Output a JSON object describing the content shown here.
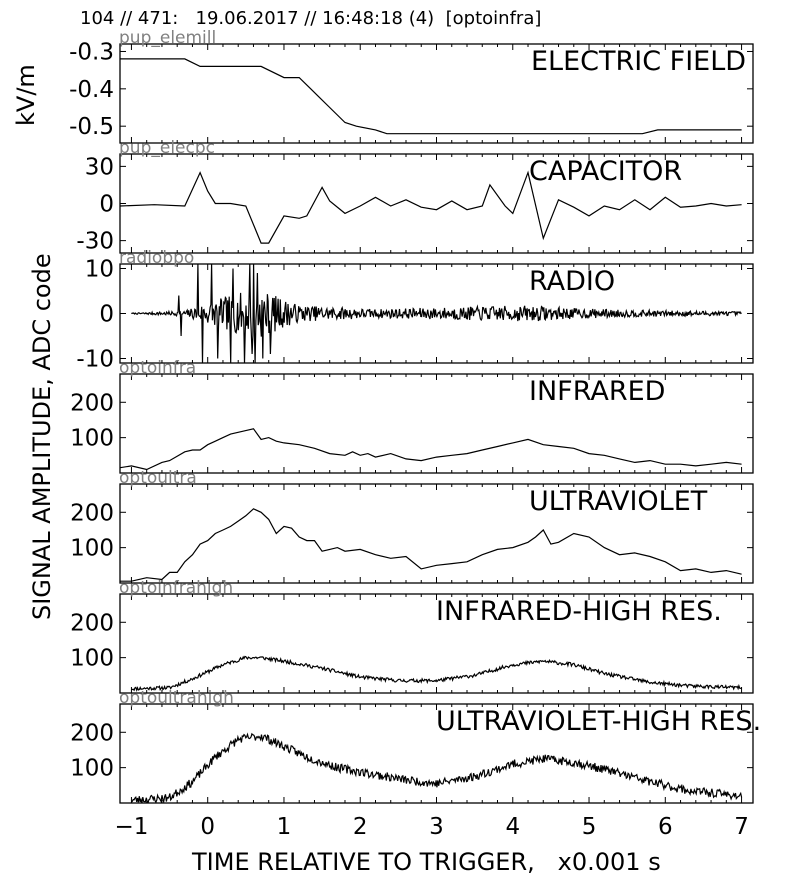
{
  "header": "104 // 471:   19.06.2017 // 16:48:18 (4)  [optoinfra]",
  "ylabel_top": "kV/m",
  "ylabel_main": "SIGNAL AMPLITUDE,  ADC code",
  "xlabel": "TIME RELATIVE TO TRIGGER,   x0.001 s",
  "xticks": [
    "−1",
    "0",
    "1",
    "2",
    "3",
    "4",
    "5",
    "6",
    "7"
  ],
  "xlim": [
    -1.15,
    7.15
  ],
  "chart_data": [
    {
      "type": "line",
      "channel": "pup_elemill",
      "title": "ELECTRIC FIELD",
      "ylim": [
        -0.545,
        -0.28
      ],
      "yticks": [
        -0.3,
        -0.4,
        -0.5
      ],
      "ytick_labels": [
        "-0.3",
        "-0.4",
        "-0.5"
      ],
      "x": [
        -1.15,
        -0.3,
        -0.1,
        0.5,
        0.7,
        1.0,
        1.1,
        1.2,
        1.35,
        1.45,
        1.6,
        1.8,
        1.95,
        2.2,
        2.35,
        5.7,
        5.9,
        7.0
      ],
      "y": [
        -0.32,
        -0.32,
        -0.34,
        -0.34,
        -0.34,
        -0.37,
        -0.37,
        -0.37,
        -0.4,
        -0.42,
        -0.45,
        -0.49,
        -0.5,
        -0.51,
        -0.52,
        -0.52,
        -0.51,
        -0.51
      ]
    },
    {
      "type": "line",
      "channel": "pup_elecpc",
      "title": "CAPACITOR",
      "ylim": [
        -40,
        40
      ],
      "yticks": [
        30,
        0,
        -30
      ],
      "ytick_labels": [
        "30",
        "0",
        "-30"
      ],
      "x": [
        -1.15,
        -0.7,
        -0.3,
        -0.1,
        0.0,
        0.1,
        0.3,
        0.5,
        0.7,
        0.8,
        1.0,
        1.2,
        1.3,
        1.5,
        1.6,
        1.8,
        2.0,
        2.2,
        2.4,
        2.6,
        2.8,
        3.0,
        3.2,
        3.4,
        3.6,
        3.7,
        3.9,
        4.0,
        4.2,
        4.4,
        4.6,
        4.8,
        5.0,
        5.2,
        5.4,
        5.6,
        5.8,
        6.0,
        6.2,
        6.4,
        6.6,
        6.8,
        7.0
      ],
      "y": [
        -2,
        -1,
        -2,
        25,
        10,
        0,
        0,
        -2,
        -32,
        -32,
        -10,
        -12,
        -10,
        13,
        2,
        -8,
        -2,
        5,
        -2,
        3,
        -3,
        -5,
        2,
        -5,
        -2,
        15,
        -2,
        -8,
        25,
        -28,
        3,
        -3,
        -10,
        -2,
        -5,
        3,
        -5,
        5,
        -3,
        -2,
        0,
        -2,
        -1
      ]
    },
    {
      "type": "line",
      "channel": "radiobpo",
      "title": "RADIO",
      "ylim": [
        -11,
        11
      ],
      "yticks": [
        10,
        0,
        -10
      ],
      "ytick_labels": [
        "10",
        "0",
        "-10"
      ],
      "x_range": [
        -1.0,
        7.0
      ],
      "n": 800,
      "seed": 7,
      "noise": [
        [
          -1.0,
          0.1
        ],
        [
          -0.3,
          0.6
        ],
        [
          0.0,
          2.5
        ],
        [
          0.5,
          5.0
        ],
        [
          0.6,
          6.0
        ],
        [
          1.2,
          1.8
        ],
        [
          2.2,
          1.0
        ],
        [
          4.2,
          1.8
        ],
        [
          4.8,
          1.2
        ],
        [
          5.5,
          0.8
        ],
        [
          7.0,
          0.4
        ]
      ],
      "spikes": [
        [
          -0.38,
          4.0
        ],
        [
          -0.35,
          -5.0
        ],
        [
          -0.13,
          11.0
        ],
        [
          -0.07,
          -11.0
        ],
        [
          0.05,
          11.0
        ],
        [
          0.13,
          -10.0
        ],
        [
          0.3,
          -11.0
        ],
        [
          0.33,
          10.0
        ],
        [
          0.48,
          -11.0
        ],
        [
          0.55,
          11.0
        ],
        [
          0.58,
          -9.0
        ],
        [
          0.6,
          11.0
        ],
        [
          0.62,
          -11.0
        ],
        [
          0.65,
          9.0
        ],
        [
          0.72,
          -10.0
        ],
        [
          0.82,
          -9.0
        ]
      ]
    },
    {
      "type": "line",
      "channel": "optoinfra",
      "title": "INFRARED",
      "ylim": [
        0,
        280
      ],
      "yticks": [
        200,
        100
      ],
      "ytick_labels": [
        "200",
        "100"
      ],
      "x": [
        -1.15,
        -1.0,
        -0.8,
        -0.6,
        -0.5,
        -0.3,
        -0.2,
        -0.1,
        0.0,
        0.1,
        0.2,
        0.3,
        0.4,
        0.5,
        0.6,
        0.7,
        0.8,
        0.9,
        1.0,
        1.2,
        1.4,
        1.6,
        1.8,
        1.9,
        2.0,
        2.1,
        2.2,
        2.4,
        2.6,
        2.8,
        3.0,
        3.2,
        3.4,
        3.6,
        3.8,
        4.0,
        4.2,
        4.4,
        4.6,
        4.8,
        5.0,
        5.2,
        5.4,
        5.6,
        5.8,
        6.0,
        6.2,
        6.4,
        6.6,
        6.8,
        7.0
      ],
      "y": [
        15,
        20,
        10,
        30,
        35,
        60,
        65,
        65,
        80,
        90,
        100,
        110,
        115,
        120,
        125,
        95,
        100,
        90,
        85,
        80,
        70,
        55,
        50,
        60,
        50,
        55,
        45,
        55,
        40,
        35,
        45,
        50,
        55,
        65,
        75,
        85,
        95,
        80,
        75,
        70,
        55,
        50,
        40,
        30,
        35,
        25,
        25,
        20,
        25,
        30,
        25
      ]
    },
    {
      "type": "line",
      "channel": "optoultra",
      "title": "ULTRAVIOLET",
      "ylim": [
        0,
        280
      ],
      "yticks": [
        200,
        100
      ],
      "ytick_labels": [
        "200",
        "100"
      ],
      "x": [
        -1.15,
        -1.0,
        -0.8,
        -0.6,
        -0.5,
        -0.4,
        -0.3,
        -0.2,
        -0.1,
        0.0,
        0.1,
        0.2,
        0.3,
        0.4,
        0.5,
        0.6,
        0.7,
        0.8,
        0.9,
        1.0,
        1.1,
        1.2,
        1.3,
        1.4,
        1.5,
        1.6,
        1.7,
        1.8,
        2.0,
        2.2,
        2.4,
        2.6,
        2.8,
        3.0,
        3.2,
        3.4,
        3.6,
        3.8,
        4.0,
        4.2,
        4.3,
        4.4,
        4.5,
        4.6,
        4.8,
        5.0,
        5.2,
        5.4,
        5.6,
        5.8,
        6.0,
        6.2,
        6.4,
        6.6,
        6.8,
        7.0
      ],
      "y": [
        5,
        5,
        15,
        10,
        30,
        30,
        60,
        80,
        110,
        120,
        140,
        150,
        160,
        175,
        190,
        210,
        200,
        180,
        140,
        160,
        155,
        130,
        120,
        120,
        90,
        95,
        100,
        90,
        95,
        80,
        70,
        75,
        40,
        50,
        55,
        60,
        80,
        95,
        100,
        115,
        130,
        150,
        110,
        115,
        140,
        130,
        100,
        80,
        85,
        75,
        60,
        35,
        40,
        30,
        35,
        25
      ]
    },
    {
      "type": "line",
      "channel": "optoinfrahigh",
      "title": "INFRARED-HIGH RES.",
      "ylim": [
        0,
        280
      ],
      "yticks": [
        200,
        100
      ],
      "ytick_labels": [
        "200",
        "100"
      ],
      "x_range": [
        -1.0,
        7.0
      ],
      "n": 700,
      "seed": 11,
      "noise": 5,
      "envelope": [
        [
          -1.0,
          12
        ],
        [
          -0.5,
          15
        ],
        [
          -0.2,
          40
        ],
        [
          0.2,
          80
        ],
        [
          0.5,
          100
        ],
        [
          0.7,
          100
        ],
        [
          1.0,
          90
        ],
        [
          1.5,
          70
        ],
        [
          2.0,
          45
        ],
        [
          2.5,
          35
        ],
        [
          3.0,
          35
        ],
        [
          3.5,
          50
        ],
        [
          4.0,
          80
        ],
        [
          4.4,
          90
        ],
        [
          4.8,
          80
        ],
        [
          5.2,
          55
        ],
        [
          5.8,
          30
        ],
        [
          6.3,
          20
        ],
        [
          7.0,
          15
        ]
      ]
    },
    {
      "type": "line",
      "channel": "optoultrahigh",
      "title": "ULTRAVIOLET-HIGH RES.",
      "ylim": [
        0,
        280
      ],
      "yticks": [
        200,
        100
      ],
      "ytick_labels": [
        "200",
        "100"
      ],
      "x_range": [
        -1.0,
        7.0
      ],
      "n": 700,
      "seed": 23,
      "noise": 12,
      "envelope": [
        [
          -1.0,
          8
        ],
        [
          -0.5,
          15
        ],
        [
          -0.2,
          60
        ],
        [
          0.1,
          130
        ],
        [
          0.4,
          180
        ],
        [
          0.7,
          190
        ],
        [
          1.0,
          160
        ],
        [
          1.3,
          130
        ],
        [
          1.7,
          100
        ],
        [
          2.2,
          80
        ],
        [
          2.6,
          65
        ],
        [
          3.0,
          55
        ],
        [
          3.5,
          75
        ],
        [
          4.0,
          110
        ],
        [
          4.4,
          125
        ],
        [
          4.8,
          115
        ],
        [
          5.3,
          90
        ],
        [
          5.8,
          60
        ],
        [
          6.3,
          35
        ],
        [
          7.0,
          20
        ]
      ]
    }
  ]
}
